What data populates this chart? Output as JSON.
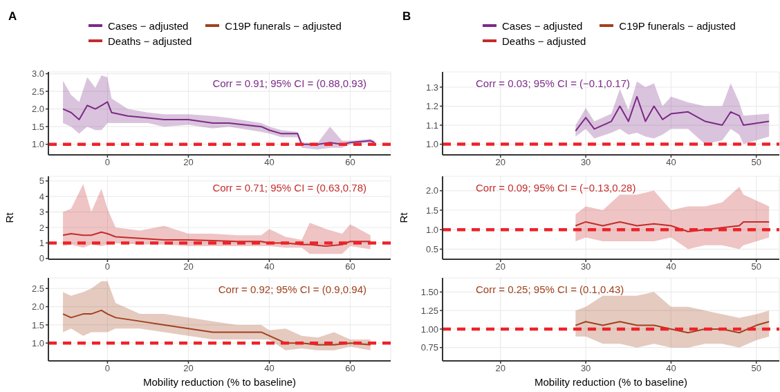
{
  "chart_data": [
    {
      "type": "line",
      "annotations": [
        "A",
        "Corr = 0.91; 95% CI = (0.88,0.93)"
      ],
      "legend": "top",
      "grid": true,
      "xlim": [
        -14.6,
        70
      ],
      "xticks": [
        0,
        20,
        40,
        60
      ],
      "ylim": [
        0.7,
        3.05
      ],
      "yticks": [
        {
          "value": 1,
          "label": "1.0"
        },
        1.5,
        {
          "value": 2,
          "label": "2.0"
        },
        2.5,
        {
          "value": 3,
          "label": "3.0"
        }
      ],
      "ref_lines": [
        {
          "axis": "y",
          "value": 1,
          "color": "#ee2229",
          "line_style": "dashed"
        }
      ],
      "series": [
        {
          "name": "Cases − adjusted",
          "color": "#7b2a86",
          "x": [
            -11,
            -9,
            -7,
            -5,
            -3,
            -1.5,
            0,
            1,
            5,
            10,
            14,
            20,
            26,
            30,
            38,
            40,
            43,
            47,
            48,
            52,
            55,
            58,
            60,
            65,
            66
          ],
          "values": [
            2.0,
            1.9,
            1.7,
            2.1,
            2.0,
            2.1,
            2.2,
            1.9,
            1.8,
            1.75,
            1.7,
            1.7,
            1.6,
            1.6,
            1.5,
            1.4,
            1.3,
            1.3,
            1.0,
            1.0,
            1.05,
            1.0,
            1.05,
            1.1,
            1.05
          ],
          "lower": [
            1.6,
            1.5,
            1.3,
            1.5,
            1.4,
            1.4,
            1.6,
            1.6,
            1.6,
            1.6,
            1.5,
            1.55,
            1.45,
            1.5,
            1.35,
            1.3,
            1.2,
            1.2,
            0.9,
            0.85,
            0.9,
            0.9,
            1.0,
            1.05,
            1.0
          ],
          "upper": [
            2.8,
            2.4,
            2.2,
            2.9,
            2.6,
            2.95,
            2.9,
            2.3,
            2.0,
            1.9,
            1.85,
            1.85,
            1.8,
            1.75,
            1.6,
            1.5,
            1.4,
            1.35,
            1.05,
            1.05,
            1.5,
            1.1,
            1.1,
            1.15,
            1.1
          ]
        }
      ]
    },
    {
      "type": "line",
      "ylabel": "Rt",
      "annotations": [
        "Corr = 0.71; 95% CI = (0.63,0.78)"
      ],
      "grid": true,
      "xlim": [
        -14.6,
        70
      ],
      "xticks": [
        0,
        20,
        40,
        60
      ],
      "ylim": [
        -0.05,
        5.3
      ],
      "yticks": [
        0,
        1,
        2,
        3,
        4,
        5
      ],
      "ref_lines": [
        {
          "axis": "y",
          "value": 1,
          "color": "#ee2229",
          "line_style": "dashed"
        }
      ],
      "series": [
        {
          "name": "Deaths − adjusted",
          "color": "#c42b2b",
          "x": [
            -11,
            -9,
            -6,
            -4,
            -1.5,
            0,
            2,
            8,
            14,
            20,
            26,
            32,
            38,
            40,
            44,
            48,
            50,
            54,
            58,
            60,
            65
          ],
          "values": [
            1.5,
            1.6,
            1.5,
            1.5,
            1.7,
            1.6,
            1.4,
            1.3,
            1.2,
            1.2,
            1.15,
            1.1,
            1.1,
            1.0,
            1.0,
            0.9,
            0.9,
            0.8,
            0.9,
            1.1,
            1.1
          ],
          "lower": [
            0.8,
            0.9,
            0.7,
            0.9,
            0.8,
            0.9,
            1.0,
            0.9,
            0.9,
            0.8,
            0.8,
            0.8,
            0.8,
            0.8,
            0.7,
            0.7,
            0.3,
            0.3,
            0.3,
            0.8,
            0.6
          ],
          "upper": [
            3.0,
            3.2,
            4.8,
            3.0,
            4.5,
            3.2,
            2.0,
            1.8,
            2.1,
            1.6,
            1.6,
            1.5,
            1.5,
            1.9,
            1.4,
            1.2,
            2.3,
            1.9,
            1.6,
            2.2,
            1.5
          ]
        }
      ]
    },
    {
      "type": "line",
      "xlabel": "Mobility reduction (% to baseline)",
      "annotations": [
        "Corr = 0.92; 95% CI = (0.9,0.94)"
      ],
      "grid": true,
      "xlim": [
        -14.6,
        70
      ],
      "xticks": [
        0,
        20,
        40,
        60
      ],
      "ylim": [
        0.51,
        2.79
      ],
      "yticks": [
        {
          "value": 1,
          "label": "1.0"
        },
        1.5,
        {
          "value": 2,
          "label": "2.0"
        },
        2.5
      ],
      "ref_lines": [
        {
          "axis": "y",
          "value": 1,
          "color": "#ee2229",
          "line_style": "dashed"
        }
      ],
      "series": [
        {
          "name": "C19P funerals − adjusted",
          "color": "#a0411d",
          "x": [
            -11,
            -9,
            -6,
            -4,
            -1.5,
            0,
            2,
            8,
            14,
            20,
            26,
            32,
            38,
            40,
            44,
            48,
            52,
            56,
            60,
            65
          ],
          "values": [
            1.8,
            1.7,
            1.8,
            1.8,
            1.9,
            1.8,
            1.7,
            1.6,
            1.5,
            1.4,
            1.3,
            1.3,
            1.3,
            1.2,
            1.0,
            1.0,
            0.95,
            0.95,
            1.0,
            0.95
          ],
          "lower": [
            1.3,
            1.4,
            1.2,
            1.3,
            1.3,
            1.3,
            1.4,
            1.4,
            1.3,
            1.2,
            1.1,
            1.1,
            1.1,
            1.1,
            0.8,
            0.85,
            0.8,
            0.8,
            0.9,
            0.8
          ],
          "upper": [
            2.4,
            2.3,
            2.4,
            2.5,
            2.7,
            2.7,
            2.1,
            1.8,
            1.8,
            1.7,
            1.6,
            1.5,
            1.5,
            1.35,
            1.4,
            1.2,
            1.15,
            1.3,
            1.1,
            1.1
          ]
        }
      ]
    },
    {
      "type": "line",
      "annotations": [
        "B",
        "Corr = 0.03; 95% CI = (−0.1,0.17)"
      ],
      "legend": "top",
      "grid": true,
      "xlim": [
        13.2,
        52.7
      ],
      "xticks": [
        20,
        30,
        40,
        50
      ],
      "ylim": [
        0.944,
        1.38
      ],
      "yticks": [
        {
          "value": 1,
          "label": "1.0"
        },
        1.1,
        1.2,
        1.3
      ],
      "ref_lines": [
        {
          "axis": "y",
          "value": 1,
          "color": "#ee2229",
          "line_style": "dashed"
        }
      ],
      "series": [
        {
          "name": "Cases − adjusted",
          "color": "#7b2a86",
          "x": [
            28.8,
            30,
            31,
            33,
            34,
            35,
            36,
            37,
            38,
            39,
            40,
            42,
            44,
            46,
            47,
            48,
            48.5,
            51.5
          ],
          "values": [
            1.07,
            1.14,
            1.08,
            1.12,
            1.2,
            1.12,
            1.25,
            1.12,
            1.2,
            1.13,
            1.16,
            1.17,
            1.12,
            1.1,
            1.17,
            1.15,
            1.1,
            1.12
          ],
          "lower": [
            1.04,
            1.08,
            1.03,
            1.06,
            1.08,
            1.05,
            1.06,
            1.04,
            1.03,
            1.05,
            1.08,
            1.08,
            1.0,
            1.02,
            1.08,
            1.05,
            1.0,
            1.04
          ],
          "upper": [
            1.1,
            1.19,
            1.12,
            1.16,
            1.29,
            1.18,
            1.33,
            1.3,
            1.32,
            1.2,
            1.25,
            1.22,
            1.2,
            1.2,
            1.32,
            1.22,
            1.15,
            1.16
          ]
        }
      ]
    },
    {
      "type": "line",
      "ylabel": "Rt",
      "annotations": [
        "Corr = 0.09; 95% CI = (−0.13,0.28)"
      ],
      "grid": true,
      "xlim": [
        13.2,
        52.7
      ],
      "xticks": [
        20,
        30,
        40,
        50
      ],
      "ylim": [
        0.24,
        2.37
      ],
      "yticks": [
        0.5,
        {
          "value": 1,
          "label": "1.0"
        },
        1.5,
        {
          "value": 2,
          "label": "2.0"
        }
      ],
      "ref_lines": [
        {
          "axis": "y",
          "value": 1,
          "color": "#ee2229",
          "line_style": "dashed"
        }
      ],
      "series": [
        {
          "name": "Deaths − adjusted",
          "color": "#c42b2b",
          "x": [
            28.8,
            30,
            32,
            34,
            36,
            38,
            40,
            42,
            44,
            46,
            48,
            48.5,
            51.5
          ],
          "values": [
            1.1,
            1.2,
            1.1,
            1.2,
            1.1,
            1.15,
            1.1,
            0.95,
            1.0,
            1.05,
            1.1,
            1.2,
            1.2
          ],
          "lower": [
            0.7,
            0.8,
            0.7,
            0.7,
            0.7,
            0.7,
            0.8,
            0.5,
            0.6,
            0.6,
            0.5,
            0.6,
            0.8
          ],
          "upper": [
            1.4,
            1.6,
            1.5,
            1.9,
            1.9,
            2.0,
            1.5,
            1.6,
            1.6,
            1.7,
            2.1,
            1.9,
            1.6
          ]
        }
      ]
    },
    {
      "type": "line",
      "xlabel": "Mobility reduction (% to baseline)",
      "annotations": [
        "Corr = 0.25; 95% CI = (0.1,0.43)"
      ],
      "grid": true,
      "xlim": [
        13.2,
        52.7
      ],
      "xticks": [
        20,
        30,
        40,
        50
      ],
      "ylim": [
        0.57,
        1.69
      ],
      "yticks": [
        {
          "value": 0.75,
          "label": "0.75"
        },
        {
          "value": 1,
          "label": "1.00"
        },
        {
          "value": 1.25,
          "label": "1.25"
        },
        {
          "value": 1.5,
          "label": "1.50"
        }
      ],
      "ref_lines": [
        {
          "axis": "y",
          "value": 1,
          "color": "#ee2229",
          "line_style": "dashed"
        }
      ],
      "series": [
        {
          "name": "C19P funerals − adjusted",
          "color": "#a0411d",
          "x": [
            28.8,
            30,
            32,
            34,
            36,
            38,
            40,
            42,
            44,
            46,
            48,
            50,
            51.5
          ],
          "values": [
            1.05,
            1.1,
            1.05,
            1.1,
            1.05,
            1.05,
            1.0,
            0.95,
            1.0,
            1.0,
            0.95,
            1.05,
            1.1
          ],
          "lower": [
            0.9,
            0.9,
            0.8,
            0.8,
            0.75,
            0.8,
            0.75,
            0.75,
            0.8,
            0.8,
            0.75,
            0.85,
            0.9
          ],
          "upper": [
            1.25,
            1.3,
            1.45,
            1.45,
            1.45,
            1.5,
            1.3,
            1.3,
            1.25,
            1.2,
            1.15,
            1.2,
            1.25
          ]
        }
      ]
    }
  ]
}
